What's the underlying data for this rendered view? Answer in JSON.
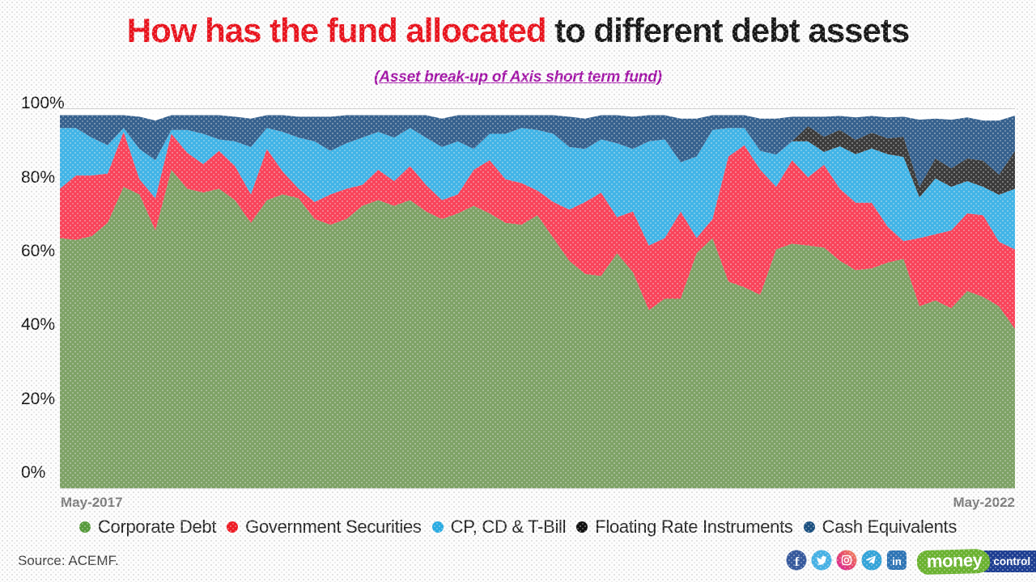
{
  "title": {
    "emphasis": "How has the fund allocated",
    "rest": " to different debt assets"
  },
  "subtitle": "(Asset break-up of Axis short term fund)",
  "colors": {
    "title_emphasis": "#e8121c",
    "subtitle": "#a112a5",
    "gridline": "#c9c9c9"
  },
  "y_axis": {
    "ticks": [
      "100%",
      "80%",
      "60%",
      "40%",
      "20%",
      "0%"
    ]
  },
  "x_axis": {
    "start_label": "May-2017",
    "end_label": "May-2022"
  },
  "legend": {
    "items": [
      {
        "label": "Corporate Debt",
        "color": "#569a3c"
      },
      {
        "label": "Government Securities",
        "color": "#ee1c25"
      },
      {
        "label": "CP, CD & T-Bill",
        "color": "#29abe2"
      },
      {
        "label": "Floating Rate Instruments",
        "color": "#111111"
      },
      {
        "label": "Cash Equivalents",
        "color": "#1b5080"
      }
    ]
  },
  "source": "Source: ACEMF.",
  "footer_icons": [
    "facebook-icon",
    "twitter-icon",
    "instagram-icon",
    "telegram-icon",
    "linkedin-icon"
  ],
  "logo": {
    "part1": "money",
    "part2": "control",
    "green": "#6ab22f",
    "blue": "#1d3d91"
  },
  "chart_data": {
    "type": "area",
    "stacked": true,
    "title": "Asset break-up of Axis short term fund",
    "x_start": "May-2017",
    "x_end": "May-2022",
    "x_interval": "monthly",
    "n_points": 61,
    "ylim": [
      0,
      100
    ],
    "y_ticks_percent": [
      0,
      20,
      40,
      60,
      80,
      100
    ],
    "grid": "top-line-only",
    "legend_position": "bottom",
    "units": "percent",
    "series": [
      {
        "name": "Corporate Debt",
        "color": "#7ea266",
        "values": [
          66,
          65.5,
          66.5,
          70,
          79.5,
          77.5,
          68,
          84,
          79,
          78,
          79,
          76,
          70,
          76,
          77.5,
          76.5,
          71,
          69.5,
          71,
          74.5,
          76,
          74.5,
          76,
          73,
          71,
          72.5,
          74.5,
          72.5,
          70,
          69.5,
          72,
          66,
          60,
          56.5,
          56,
          62,
          57,
          47,
          50,
          50,
          62,
          66,
          54.5,
          53,
          51,
          63,
          64.5,
          64,
          63.5,
          60,
          57.5,
          58,
          59.5,
          60.5,
          48,
          49.5,
          47.5,
          52,
          50.5,
          48,
          42
        ]
      },
      {
        "name": "Government Securities",
        "color": "#f9435a",
        "values": [
          13,
          17,
          16,
          13,
          14.5,
          4,
          8.5,
          9.5,
          9.5,
          7.5,
          10,
          9,
          7.5,
          13.5,
          6,
          2.5,
          4.5,
          8,
          8,
          5.5,
          8,
          6.5,
          9,
          7,
          5,
          5,
          9.5,
          14,
          11.5,
          11,
          6.5,
          9.5,
          13.5,
          19,
          22,
          9.5,
          16,
          17,
          16,
          23,
          4,
          5,
          33,
          37.5,
          33,
          16.5,
          22,
          18,
          21.8,
          19,
          17.8,
          17.3,
          9.5,
          4.7,
          18,
          17.5,
          20.5,
          20.5,
          21.5,
          17,
          21
        ]
      },
      {
        "name": "CP, CD & T-Bill",
        "color": "#41b4e7",
        "values": [
          16,
          12.5,
          10,
          7.5,
          1,
          8,
          10,
          1,
          6,
          8,
          3,
          6.5,
          12.5,
          5.5,
          10.5,
          13.5,
          16,
          11.5,
          12,
          12.5,
          10,
          11.5,
          10,
          12.5,
          14,
          14,
          5.5,
          7,
          12,
          14.5,
          16,
          18,
          16.5,
          14,
          14,
          19.5,
          16.5,
          27.5,
          26,
          13,
          21.5,
          23.5,
          7.5,
          4.5,
          5,
          8.5,
          5,
          9.5,
          3.4,
          11.2,
          12.8,
          14.3,
          19.1,
          22.2,
          10.7,
          14.7,
          11.5,
          8.5,
          7.5,
          12.4,
          16
        ]
      },
      {
        "name": "Floating Rate Instruments",
        "color": "#3b3b3b",
        "values": [
          0,
          0,
          0,
          0,
          0,
          0,
          0,
          0,
          0,
          0,
          0,
          0,
          0,
          0,
          0,
          0,
          0,
          0,
          0,
          0,
          0,
          0,
          0,
          0,
          0,
          0,
          0,
          0,
          0,
          0,
          0,
          0,
          0,
          0,
          0,
          0,
          0,
          0,
          0,
          0,
          0,
          0,
          0,
          0,
          0,
          0,
          0,
          4,
          4,
          4.3,
          3.8,
          4.2,
          4.2,
          5.3,
          2.8,
          5.3,
          4.9,
          6,
          6.9,
          5.3,
          10
        ]
      },
      {
        "name": "Cash Equivalents",
        "color": "#36618e",
        "values": [
          3.4,
          3.4,
          5.9,
          7.9,
          3.4,
          8.5,
          10.5,
          3.9,
          3.9,
          4.9,
          6.4,
          6.5,
          7.5,
          3.4,
          4.4,
          5.5,
          6.5,
          9,
          7.4,
          5.9,
          4.4,
          5.9,
          3.4,
          5.9,
          7.5,
          6.9,
          8.9,
          4.9,
          4.9,
          3.4,
          3.9,
          4.9,
          8,
          8,
          6.4,
          7.4,
          8.5,
          6.9,
          6.4,
          11.5,
          10,
          3.9,
          3.4,
          3.4,
          8.5,
          9.5,
          6.5,
          2.5,
          5.3,
          3.7,
          5.9,
          4.4,
          5.5,
          5.3,
          17.7,
          10.5,
          12.8,
          10.8,
          10.6,
          14.3,
          9.3
        ]
      }
    ]
  }
}
